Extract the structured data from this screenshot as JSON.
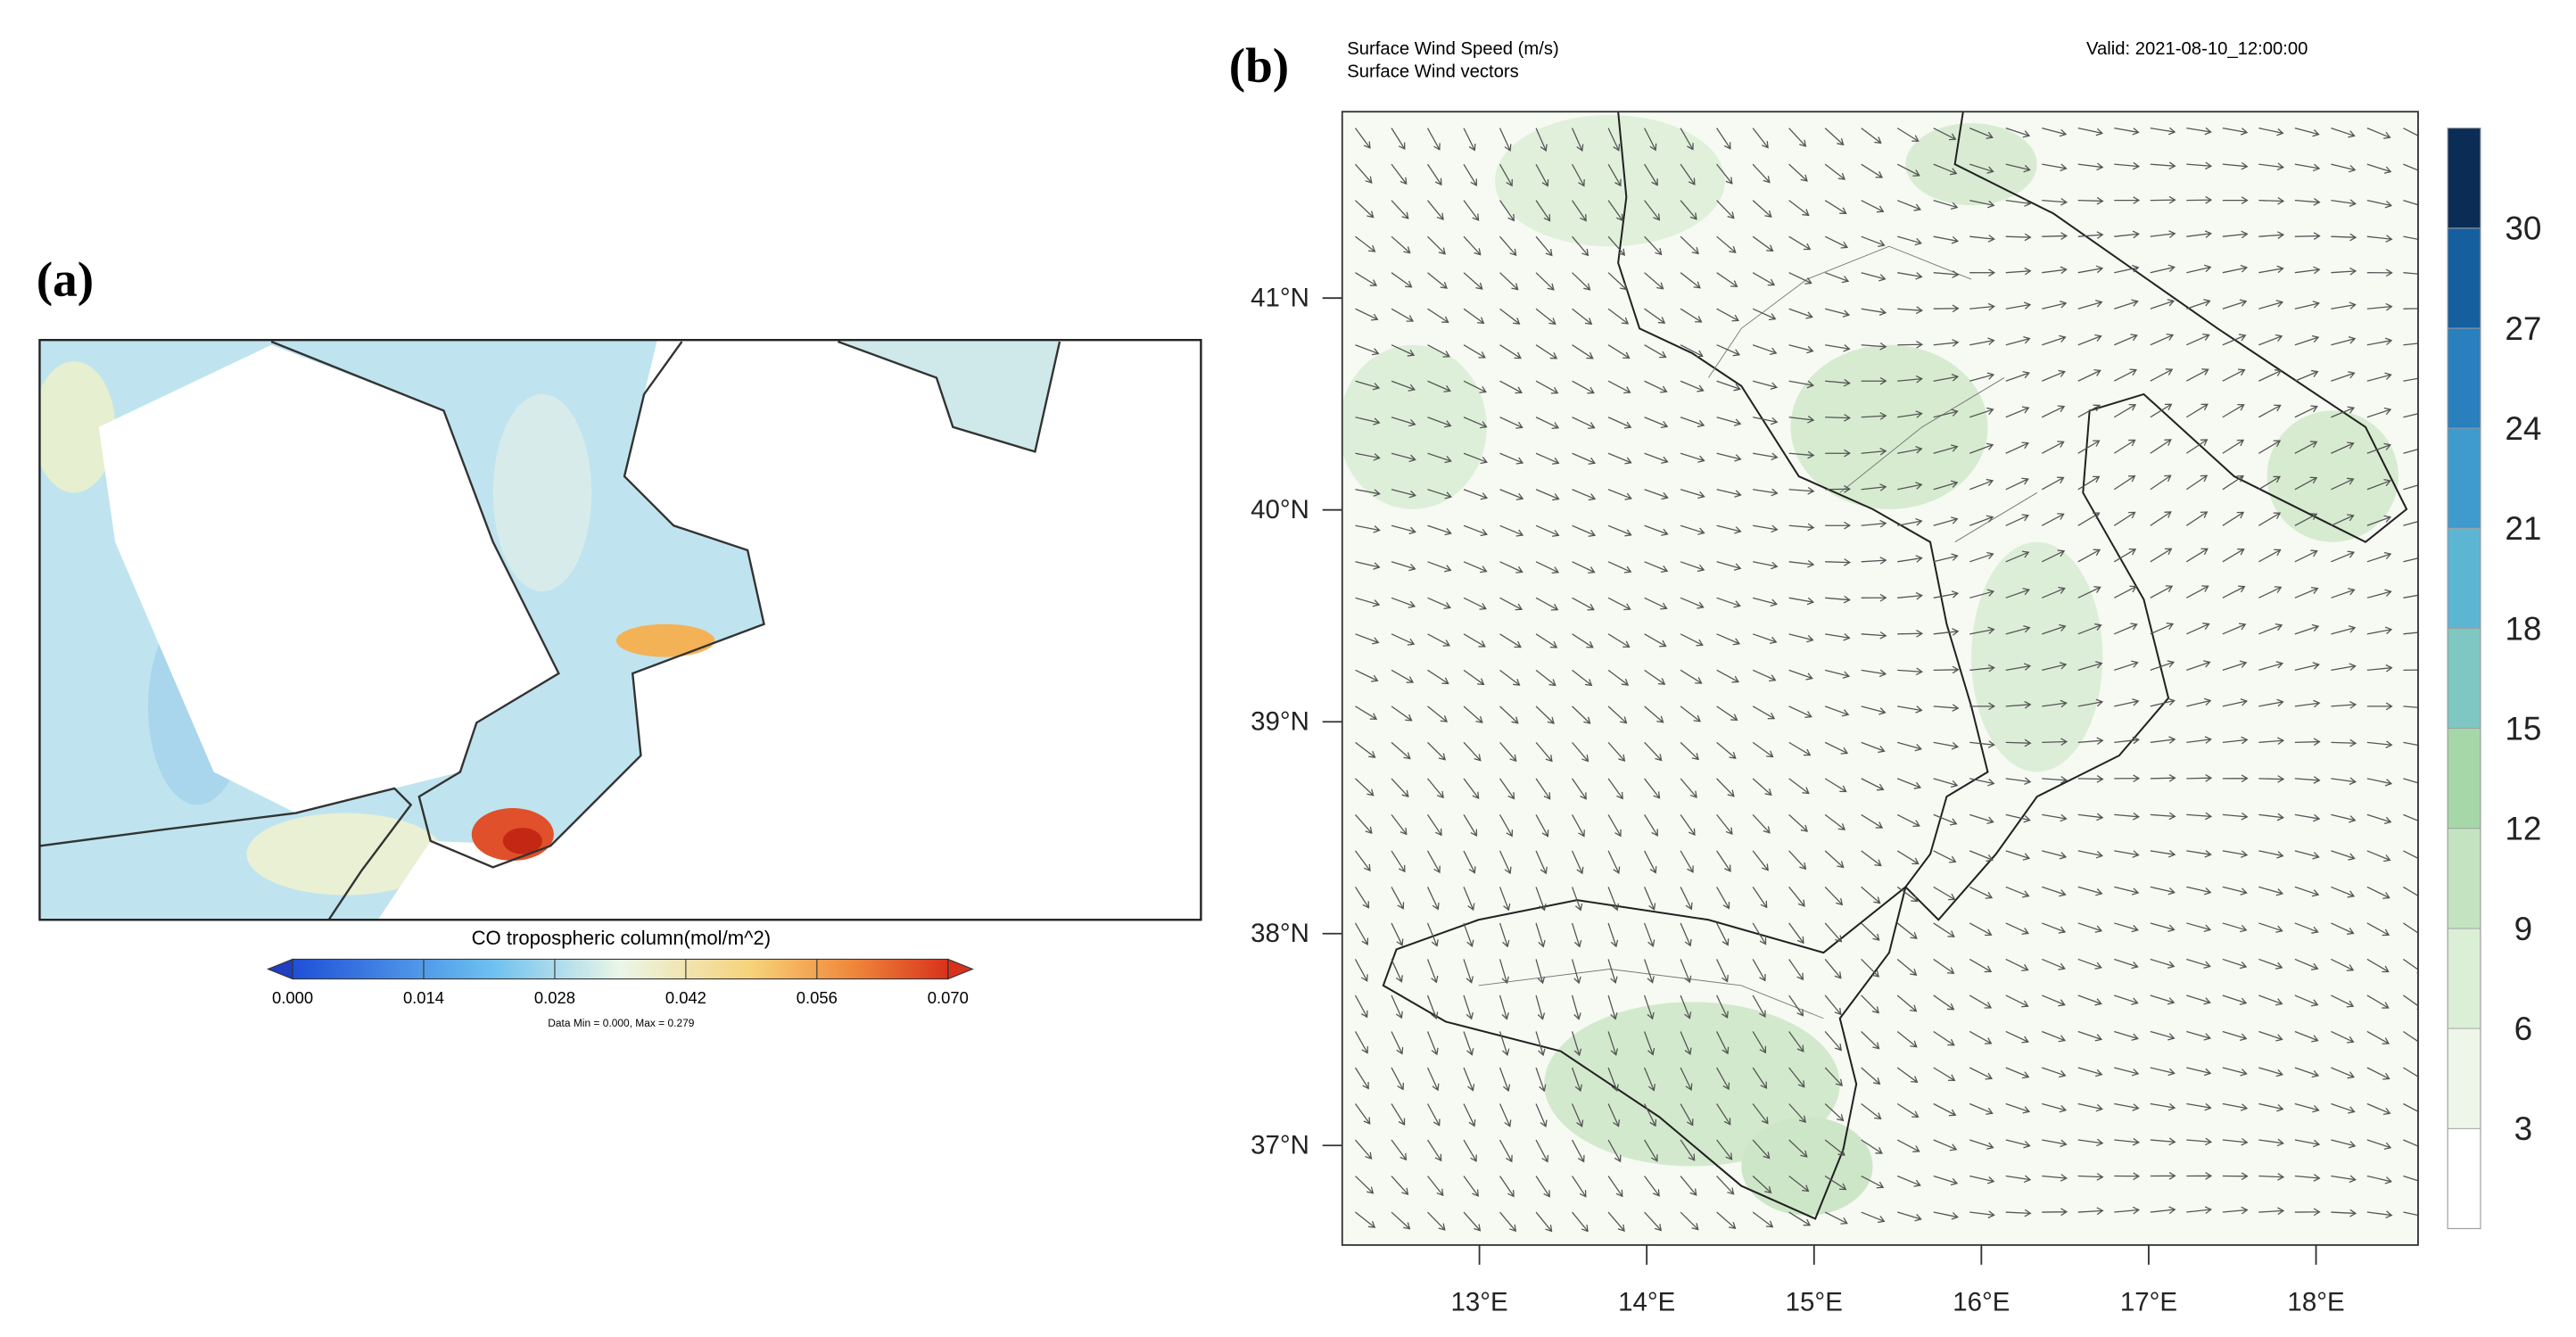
{
  "panel_a": {
    "label": "(a)",
    "colorbar": {
      "title": "CO tropospheric column(mol/m^2)",
      "range": [
        0,
        0.07
      ],
      "ticks": [
        {
          "value": 0,
          "label": "0.000"
        },
        {
          "value": 0.014,
          "label": "0.014"
        },
        {
          "value": 0.028,
          "label": "0.028"
        },
        {
          "value": 0.042,
          "label": "0.042"
        },
        {
          "value": 0.056,
          "label": "0.056"
        },
        {
          "value": 0.07,
          "label": "0.070"
        }
      ],
      "note": "Data Min = 0.000, Max = 0.279"
    }
  },
  "panel_b": {
    "label": "(b)",
    "title_lines": [
      "Surface Wind Speed (m/s)",
      "Surface Wind vectors"
    ],
    "valid": "Valid: 2021-08-10_12:00:00",
    "lat_range": [
      36.53,
      41.88
    ],
    "lon_range": [
      12.18,
      18.61
    ],
    "lat_ticks": [
      {
        "value": 37,
        "label": "37°N"
      },
      {
        "value": 38,
        "label": "38°N"
      },
      {
        "value": 39,
        "label": "39°N"
      },
      {
        "value": 40,
        "label": "40°N"
      },
      {
        "value": 41,
        "label": "41°N"
      }
    ],
    "lon_ticks": [
      {
        "value": 13,
        "label": "13°E"
      },
      {
        "value": 14,
        "label": "14°E"
      },
      {
        "value": 15,
        "label": "15°E"
      },
      {
        "value": 16,
        "label": "16°E"
      },
      {
        "value": 17,
        "label": "17°E"
      },
      {
        "value": 18,
        "label": "18°E"
      }
    ],
    "colorbar": {
      "range": [
        0,
        33
      ],
      "ticks": [
        3,
        6,
        9,
        12,
        15,
        18,
        21,
        24,
        27,
        30
      ],
      "colors": [
        "#ffffff",
        "#eef6ea",
        "#dbeed6",
        "#c4e4c1",
        "#a6d7a9",
        "#7ec7c2",
        "#5cb5d3",
        "#3f9bcd",
        "#2a7fbd",
        "#165f9f",
        "#0b2d55"
      ]
    }
  }
}
